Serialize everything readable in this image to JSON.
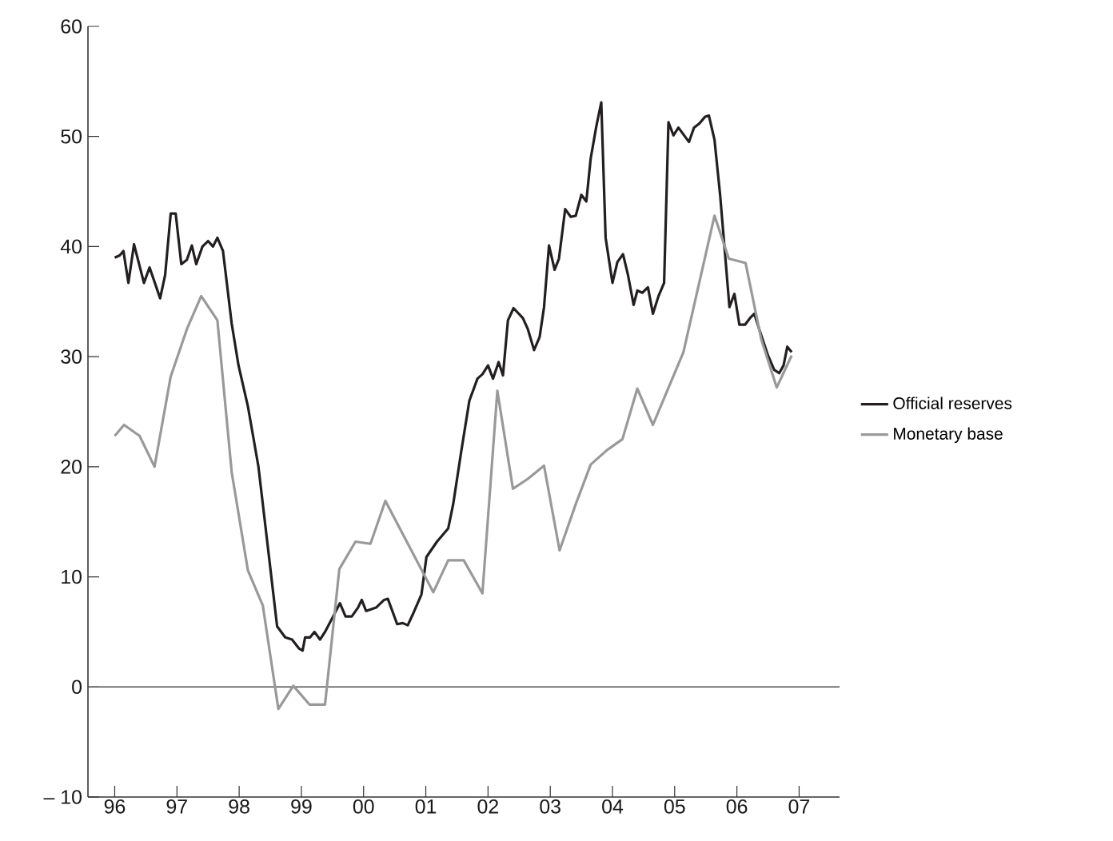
{
  "chart_data": {
    "type": "line",
    "xlim": [
      1995.57,
      2007.65
    ],
    "ylim": [
      -10,
      60
    ],
    "xticks": [
      {
        "value": 1996,
        "label": "96"
      },
      {
        "value": 1997,
        "label": "97"
      },
      {
        "value": 1998,
        "label": "98"
      },
      {
        "value": 1999,
        "label": "99"
      },
      {
        "value": 2000,
        "label": "00"
      },
      {
        "value": 2001,
        "label": "01"
      },
      {
        "value": 2002,
        "label": "02"
      },
      {
        "value": 2003,
        "label": "03"
      },
      {
        "value": 2004,
        "label": "04"
      },
      {
        "value": 2005,
        "label": "05"
      },
      {
        "value": 2006,
        "label": "06"
      },
      {
        "value": 2007,
        "label": "07"
      }
    ],
    "yticks": [
      {
        "value": -10,
        "label": "– 10"
      },
      0,
      10,
      20,
      30,
      40,
      50,
      60
    ],
    "grid": false,
    "legend": "right",
    "marker": "none",
    "line_style": "solid",
    "ref_lines": [
      {
        "axis": "y",
        "value": 0,
        "color": "#4d4d4d"
      }
    ],
    "series": [
      {
        "name": "Official reserves",
        "color": "#231f20",
        "x": [
          1996.0,
          1996.08,
          1996.14,
          1996.22,
          1996.31,
          1996.47,
          1996.56,
          1996.73,
          1996.81,
          1996.9,
          1996.98,
          1997.07,
          1997.16,
          1997.24,
          1997.31,
          1997.41,
          1997.5,
          1997.58,
          1997.65,
          1997.74,
          1997.88,
          1997.99,
          1998.14,
          1998.31,
          1998.48,
          1998.61,
          1998.74,
          1998.85,
          1998.96,
          1999.02,
          1999.06,
          1999.14,
          1999.21,
          1999.3,
          1999.38,
          1999.51,
          1999.62,
          1999.71,
          1999.81,
          1999.91,
          1999.97,
          2000.04,
          2000.2,
          2000.33,
          2000.39,
          2000.54,
          2000.63,
          2000.71,
          2000.8,
          2000.93,
          2001.01,
          2001.18,
          2001.36,
          2001.44,
          2001.57,
          2001.7,
          2001.83,
          2001.91,
          2002.0,
          2002.08,
          2002.17,
          2002.24,
          2002.32,
          2002.41,
          2002.56,
          2002.64,
          2002.74,
          2002.83,
          2002.9,
          2002.98,
          2003.07,
          2003.14,
          2003.24,
          2003.33,
          2003.41,
          2003.5,
          2003.58,
          2003.65,
          2003.74,
          2003.82,
          2003.89,
          2004.0,
          2004.08,
          2004.17,
          2004.25,
          2004.34,
          2004.4,
          2004.48,
          2004.57,
          2004.65,
          2004.74,
          2004.83,
          2004.9,
          2004.98,
          2005.06,
          2005.23,
          2005.31,
          2005.4,
          2005.49,
          2005.55,
          2005.64,
          2005.73,
          2005.81,
          2005.88,
          2005.96,
          2006.04,
          2006.13,
          2006.21,
          2006.28,
          2006.37,
          2006.5,
          2006.6,
          2006.68,
          2006.75,
          2006.81,
          2006.88
        ],
        "values": [
          39.0,
          39.2,
          39.6,
          36.7,
          40.2,
          36.7,
          38.1,
          35.3,
          37.4,
          43.0,
          43.0,
          38.4,
          38.8,
          40.1,
          38.4,
          40.0,
          40.5,
          40.0,
          40.8,
          39.6,
          33.0,
          29.2,
          25.5,
          20.0,
          11.8,
          5.5,
          4.5,
          4.3,
          3.5,
          3.3,
          4.5,
          4.5,
          5.0,
          4.3,
          5.0,
          6.4,
          7.6,
          6.4,
          6.4,
          7.2,
          7.9,
          6.9,
          7.2,
          7.9,
          8.0,
          5.7,
          5.8,
          5.6,
          6.7,
          8.4,
          11.8,
          13.2,
          14.4,
          16.6,
          21.4,
          26.0,
          28.0,
          28.4,
          29.2,
          28.0,
          29.5,
          28.3,
          33.3,
          34.4,
          33.5,
          32.5,
          30.6,
          31.8,
          34.5,
          40.1,
          37.9,
          38.9,
          43.4,
          42.7,
          42.8,
          44.7,
          44.1,
          48.0,
          50.9,
          53.1,
          40.8,
          36.7,
          38.6,
          39.3,
          37.4,
          34.7,
          36.0,
          35.8,
          36.3,
          33.9,
          35.5,
          36.7,
          51.3,
          50.1,
          50.8,
          49.5,
          50.8,
          51.2,
          51.8,
          51.9,
          49.7,
          44.7,
          39.3,
          34.5,
          35.7,
          32.9,
          32.9,
          33.5,
          33.9,
          32.3,
          30.1,
          28.8,
          28.5,
          29.2,
          30.9,
          30.4
        ]
      },
      {
        "name": "Monetary base",
        "color": "#999999",
        "x": [
          1996.0,
          1996.15,
          1996.4,
          1996.64,
          1996.9,
          1997.16,
          1997.39,
          1997.65,
          1997.88,
          1998.14,
          1998.38,
          1998.63,
          1998.87,
          1999.13,
          1999.38,
          1999.61,
          1999.87,
          2000.11,
          2000.35,
          2001.12,
          2001.36,
          2001.61,
          2001.91,
          2002.15,
          2002.4,
          2002.64,
          2002.9,
          2003.15,
          2003.41,
          2003.65,
          2003.91,
          2004.16,
          2004.4,
          2004.65,
          2005.14,
          2005.64,
          2005.87,
          2006.14,
          2006.39,
          2006.64,
          2006.88
        ],
        "values": [
          22.8,
          23.8,
          22.8,
          20.0,
          28.2,
          32.5,
          35.5,
          33.3,
          19.5,
          10.6,
          7.4,
          -2.0,
          0.1,
          -1.6,
          -1.6,
          10.7,
          13.2,
          13.0,
          16.9,
          8.6,
          11.5,
          11.5,
          8.5,
          26.9,
          18.0,
          18.9,
          20.1,
          12.4,
          16.6,
          20.2,
          21.5,
          22.5,
          27.1,
          23.8,
          30.4,
          42.8,
          38.9,
          38.5,
          31.6,
          27.2,
          30.1
        ]
      }
    ]
  }
}
